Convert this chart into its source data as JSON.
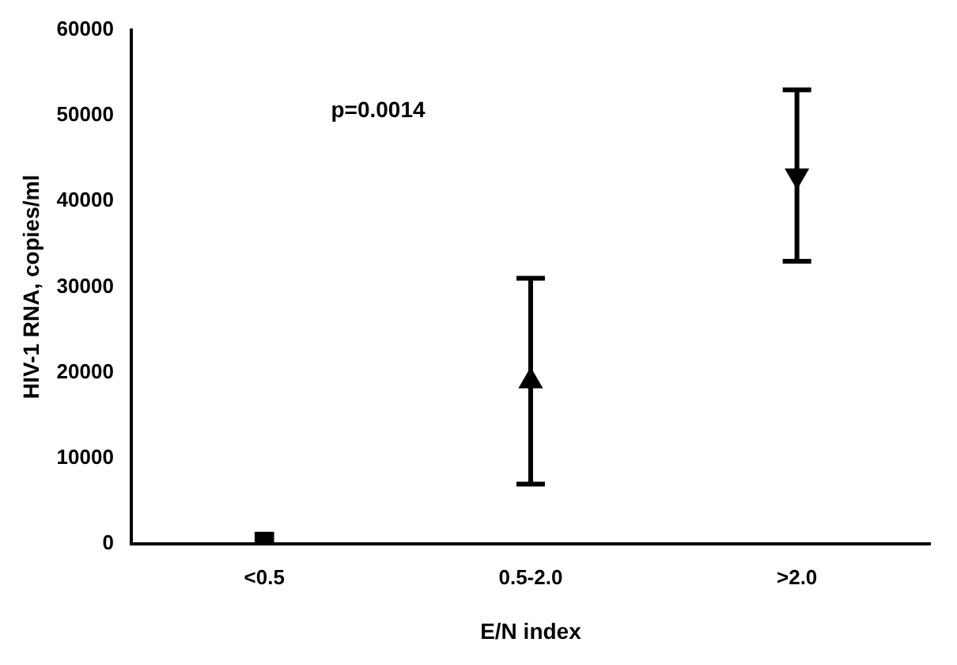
{
  "chart_data": {
    "type": "scatter",
    "xlabel": "E/N index",
    "ylabel": "HIV-1 RNA, copies/ml",
    "categories": [
      "<0.5",
      "0.5-2.0",
      ">2.0"
    ],
    "series": [
      {
        "color": "#000000",
        "marker": "square",
        "values": [
          300,
          null,
          null
        ]
      },
      {
        "color": "#000000",
        "marker": "triangle",
        "values": [
          null,
          19000,
          null
        ],
        "errors": [
          null,
          [
            7000,
            31000
          ],
          null
        ]
      },
      {
        "color": "#000000",
        "marker": "triangle-down",
        "values": [
          null,
          null,
          43000
        ],
        "errors": [
          null,
          null,
          [
            33000,
            53000
          ]
        ]
      }
    ],
    "ylim": [
      0,
      60000
    ],
    "yticks": [
      0,
      10000,
      20000,
      30000,
      40000,
      50000,
      60000
    ],
    "grid": false,
    "legend": false,
    "annotations": [
      "p=0.0014"
    ]
  }
}
